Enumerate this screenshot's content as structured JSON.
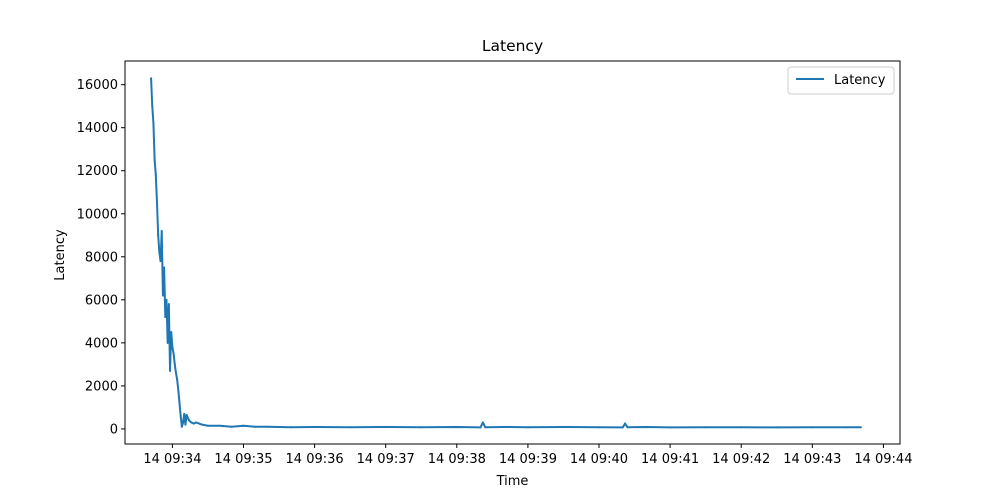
{
  "chart_data": {
    "type": "line",
    "title": "Latency",
    "xlabel": "Time",
    "ylabel": "Latency",
    "x_unit": "time (hh:mm)",
    "xlim": [
      "09:33:20",
      "09:44:14"
    ],
    "ylim": [
      -700,
      17100
    ],
    "x_ticks": [
      "09:34",
      "09:35",
      "09:36",
      "09:37",
      "09:38",
      "09:39",
      "09:40",
      "09:41",
      "09:42",
      "09:43",
      "09:44"
    ],
    "x_tick_labels": [
      "14 09:34",
      "14 09:35",
      "14 09:36",
      "14 09:37",
      "14 09:38",
      "14 09:39",
      "14 09:40",
      "14 09:41",
      "14 09:42",
      "14 09:43",
      "14 09:44"
    ],
    "y_ticks": [
      0,
      2000,
      4000,
      6000,
      8000,
      10000,
      12000,
      14000,
      16000
    ],
    "y_tick_labels": [
      "0",
      "2000",
      "4000",
      "6000",
      "8000",
      "10000",
      "12000",
      "14000",
      "16000"
    ],
    "legend": {
      "position": "top-right",
      "entries": [
        "Latency"
      ]
    },
    "grid": false,
    "series": [
      {
        "name": "Latency",
        "color": "#1f77b4",
        "x": [
          "09:33:42",
          "09:33:43",
          "09:33:44",
          "09:33:45",
          "09:33:46",
          "09:33:47",
          "09:33:48",
          "09:33:49",
          "09:33:50",
          "09:33:51",
          "09:33:52",
          "09:33:53",
          "09:33:54",
          "09:33:55",
          "09:33:56",
          "09:33:57",
          "09:33:58",
          "09:33:59",
          "09:34:00",
          "09:34:01",
          "09:34:02",
          "09:34:03",
          "09:34:04",
          "09:34:05",
          "09:34:06",
          "09:34:07",
          "09:34:08",
          "09:34:09",
          "09:34:10",
          "09:34:11",
          "09:34:12",
          "09:34:14",
          "09:34:16",
          "09:34:18",
          "09:34:20",
          "09:34:25",
          "09:34:30",
          "09:34:40",
          "09:34:50",
          "09:35:00",
          "09:35:10",
          "09:35:20",
          "09:35:40",
          "09:36:00",
          "09:36:30",
          "09:37:00",
          "09:37:30",
          "09:38:00",
          "09:38:20",
          "09:38:22",
          "09:38:24",
          "09:38:40",
          "09:39:00",
          "09:39:30",
          "09:40:00",
          "09:40:20",
          "09:40:22",
          "09:40:24",
          "09:40:40",
          "09:41:00",
          "09:41:30",
          "09:42:00",
          "09:42:30",
          "09:43:00",
          "09:43:30",
          "09:43:41"
        ],
        "y": [
          16300,
          15000,
          14200,
          12500,
          11800,
          10500,
          9000,
          8200,
          7800,
          9200,
          6200,
          7500,
          5200,
          6000,
          4000,
          5800,
          2700,
          4500,
          3800,
          3500,
          3000,
          2600,
          2300,
          1800,
          1200,
          600,
          100,
          300,
          700,
          200,
          650,
          400,
          300,
          250,
          300,
          200,
          150,
          150,
          100,
          150,
          100,
          100,
          80,
          90,
          80,
          90,
          80,
          90,
          70,
          300,
          80,
          90,
          80,
          90,
          80,
          70,
          250,
          80,
          90,
          70,
          80,
          80,
          70,
          80,
          80,
          80
        ]
      }
    ]
  }
}
